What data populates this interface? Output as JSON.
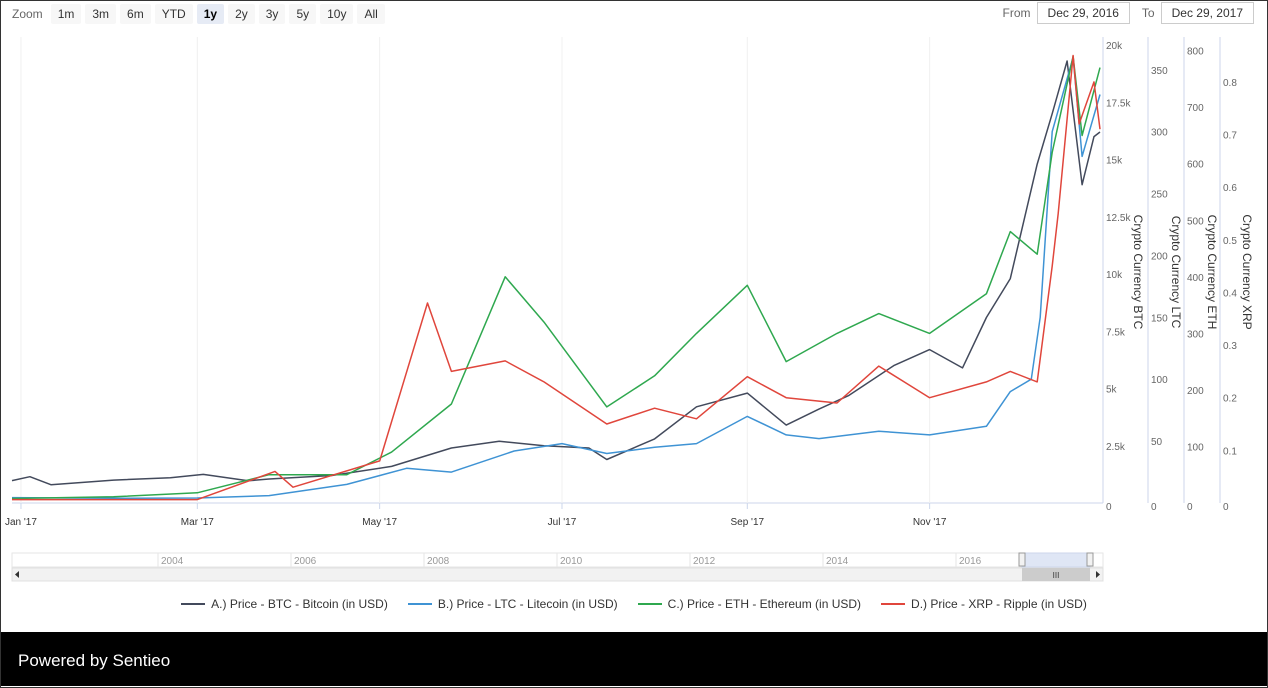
{
  "toolbar": {
    "zoom_label": "Zoom",
    "zoom_buttons": [
      "1m",
      "3m",
      "6m",
      "YTD",
      "1y",
      "2y",
      "3y",
      "5y",
      "10y",
      "All"
    ],
    "active_zoom": "1y",
    "from_label": "From",
    "from_value": "Dec 29, 2016",
    "to_label": "To",
    "to_value": "Dec 29, 2017"
  },
  "navigator": {
    "year_labels": [
      "2004",
      "2006",
      "2008",
      "2010",
      "2012",
      "2014",
      "2016"
    ],
    "scroll_grip": "III"
  },
  "footer": {
    "text": "Powered by Sentieo"
  },
  "colors": {
    "btc": "#434a5c",
    "ltc": "#3f93d4",
    "eth": "#2fa84f",
    "xrp": "#e0463c"
  },
  "chart_data": {
    "type": "line",
    "x_range": [
      "2016-12-29",
      "2017-12-29"
    ],
    "x_tick_labels": [
      "Jan '17",
      "Mar '17",
      "May '17",
      "Jul '17",
      "Sep '17",
      "Nov '17"
    ],
    "axes": [
      {
        "id": "btc",
        "title": "Crypto Currency BTC",
        "range": [
          0,
          20000
        ],
        "ticks": [
          0,
          2500,
          5000,
          7500,
          10000,
          12500,
          15000,
          17500,
          20000
        ],
        "tick_labels": [
          "0",
          "2.5k",
          "5k",
          "7.5k",
          "10k",
          "12.5k",
          "15k",
          "17.5k",
          "20k"
        ]
      },
      {
        "id": "ltc",
        "title": "Crypto Currency LTC",
        "range": [
          0,
          370
        ],
        "ticks": [
          0,
          50,
          100,
          150,
          200,
          250,
          300,
          350
        ],
        "tick_labels": [
          "0",
          "50",
          "100",
          "150",
          "200",
          "250",
          "300",
          "350"
        ]
      },
      {
        "id": "eth",
        "title": "Crypto Currency ETH",
        "range": [
          0,
          810
        ],
        "ticks": [
          0,
          100,
          200,
          300,
          400,
          500,
          600,
          700,
          800
        ],
        "tick_labels": [
          "0",
          "100",
          "200",
          "300",
          "400",
          "500",
          "600",
          "700",
          "800"
        ]
      },
      {
        "id": "xrp",
        "title": "Crypto Currency XRP",
        "range": [
          0,
          0.87
        ],
        "ticks": [
          0,
          0.1,
          0.2,
          0.3,
          0.4,
          0.5,
          0.6,
          0.7,
          0.8
        ],
        "tick_labels": [
          "0",
          "0.1",
          "0.2",
          "0.3",
          "0.4",
          "0.5",
          "0.6",
          "0.7",
          "0.8"
        ]
      }
    ],
    "series": [
      {
        "name": "A.) Price - BTC - Bitcoin (in USD)",
        "axis": "btc",
        "color": "#434a5c",
        "x": [
          "2016-12-29",
          "2017-01-04",
          "2017-01-11",
          "2017-02-01",
          "2017-02-20",
          "2017-03-03",
          "2017-03-18",
          "2017-03-25",
          "2017-04-15",
          "2017-05-05",
          "2017-05-25",
          "2017-06-10",
          "2017-06-25",
          "2017-07-10",
          "2017-07-16",
          "2017-08-01",
          "2017-08-15",
          "2017-09-01",
          "2017-09-14",
          "2017-09-25",
          "2017-10-05",
          "2017-10-20",
          "2017-11-01",
          "2017-11-12",
          "2017-11-20",
          "2017-11-28",
          "2017-12-07",
          "2017-12-12",
          "2017-12-17",
          "2017-12-22",
          "2017-12-26",
          "2017-12-28"
        ],
        "values": [
          980,
          1150,
          800,
          1000,
          1100,
          1250,
          970,
          1050,
          1200,
          1600,
          2400,
          2700,
          2500,
          2400,
          1900,
          2800,
          4200,
          4800,
          3400,
          4100,
          4700,
          6000,
          6700,
          5900,
          8100,
          9800,
          14800,
          17000,
          19300,
          13900,
          16000,
          16200
        ]
      },
      {
        "name": "B.) Price - LTC - Litecoin (in USD)",
        "axis": "ltc",
        "color": "#3f93d4",
        "x": [
          "2016-12-29",
          "2017-02-01",
          "2017-03-01",
          "2017-03-25",
          "2017-04-20",
          "2017-05-10",
          "2017-05-25",
          "2017-06-15",
          "2017-07-01",
          "2017-07-16",
          "2017-08-01",
          "2017-08-15",
          "2017-09-01",
          "2017-09-14",
          "2017-09-25",
          "2017-10-15",
          "2017-11-01",
          "2017-11-20",
          "2017-11-28",
          "2017-12-05",
          "2017-12-08",
          "2017-12-12",
          "2017-12-19",
          "2017-12-22",
          "2017-12-28"
        ],
        "values": [
          4.4,
          3.8,
          4,
          6,
          15,
          28,
          25,
          42,
          48,
          40,
          45,
          48,
          70,
          55,
          52,
          58,
          55,
          62,
          90,
          100,
          150,
          300,
          360,
          280,
          330
        ]
      },
      {
        "name": "C.) Price - ETH - Ethereum (in USD)",
        "axis": "eth",
        "color": "#2fa84f",
        "x": [
          "2016-12-29",
          "2017-02-01",
          "2017-03-01",
          "2017-03-25",
          "2017-04-20",
          "2017-05-05",
          "2017-05-25",
          "2017-06-12",
          "2017-06-25",
          "2017-07-16",
          "2017-08-01",
          "2017-08-15",
          "2017-09-01",
          "2017-09-14",
          "2017-10-01",
          "2017-10-15",
          "2017-11-01",
          "2017-11-20",
          "2017-11-28",
          "2017-12-07",
          "2017-12-12",
          "2017-12-19",
          "2017-12-22",
          "2017-12-28"
        ],
        "values": [
          8,
          11,
          18,
          50,
          50,
          90,
          175,
          400,
          320,
          170,
          225,
          300,
          385,
          250,
          300,
          335,
          300,
          370,
          480,
          440,
          620,
          790,
          650,
          770
        ]
      },
      {
        "name": "D.) Price - XRP - Ripple (in USD)",
        "axis": "xrp",
        "color": "#e0463c",
        "x": [
          "2016-12-29",
          "2017-03-01",
          "2017-03-27",
          "2017-04-02",
          "2017-05-01",
          "2017-05-17",
          "2017-05-25",
          "2017-06-12",
          "2017-06-25",
          "2017-07-16",
          "2017-08-01",
          "2017-08-15",
          "2017-09-01",
          "2017-09-14",
          "2017-10-01",
          "2017-10-15",
          "2017-11-01",
          "2017-11-20",
          "2017-11-28",
          "2017-12-07",
          "2017-12-12",
          "2017-12-14",
          "2017-12-19",
          "2017-12-21",
          "2017-12-26",
          "2017-12-28"
        ],
        "values": [
          0.0065,
          0.0065,
          0.06,
          0.03,
          0.08,
          0.38,
          0.25,
          0.27,
          0.23,
          0.15,
          0.18,
          0.16,
          0.24,
          0.2,
          0.19,
          0.26,
          0.2,
          0.23,
          0.25,
          0.23,
          0.45,
          0.55,
          0.85,
          0.72,
          0.8,
          0.71
        ]
      }
    ]
  }
}
